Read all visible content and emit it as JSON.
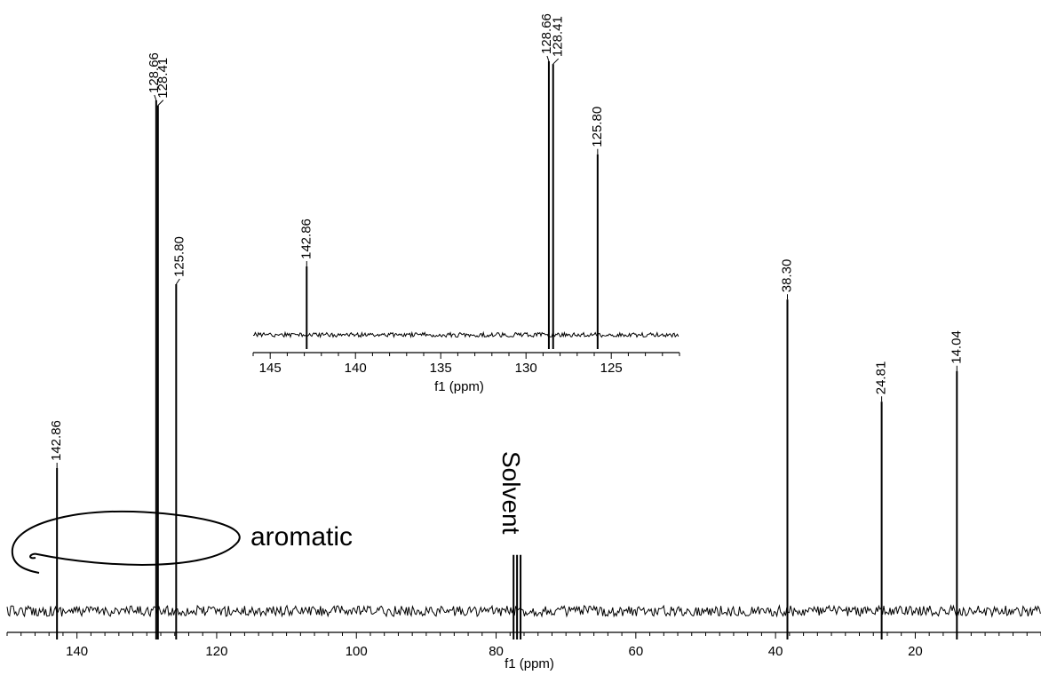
{
  "chart_data": [
    {
      "type": "line",
      "title": "",
      "xlabel": "f1 (ppm)",
      "ylabel": "",
      "xlim": [
        150,
        2
      ],
      "xticks": [
        140,
        120,
        100,
        80,
        60,
        40,
        20
      ],
      "grid": false,
      "series": [
        {
          "peaks": [
            {
              "ppm": 142.86,
              "label": "142.86",
              "height": 0.28
            },
            {
              "ppm": 128.66,
              "label": "128.66",
              "height": 1.0
            },
            {
              "ppm": 128.41,
              "label": "128.41",
              "height": 0.99
            },
            {
              "ppm": 125.8,
              "label": "125.80",
              "height": 0.64
            },
            {
              "ppm": 77.5,
              "label": "",
              "height": 0.11
            },
            {
              "ppm": 77.0,
              "label": "",
              "height": 0.11
            },
            {
              "ppm": 76.5,
              "label": "",
              "height": 0.11
            },
            {
              "ppm": 38.3,
              "label": "38.30",
              "height": 0.61
            },
            {
              "ppm": 24.81,
              "label": "24.81",
              "height": 0.41
            },
            {
              "ppm": 14.04,
              "label": "14.04",
              "height": 0.47
            }
          ]
        }
      ],
      "annotations": [
        {
          "text": "aromatic",
          "ppm": 130
        },
        {
          "text": "Solvent",
          "ppm": 77
        }
      ]
    },
    {
      "type": "line",
      "title": "",
      "xlabel": "f1 (ppm)",
      "ylabel": "",
      "xlim": [
        146,
        121
      ],
      "xticks": [
        145,
        140,
        135,
        130,
        125
      ],
      "grid": false,
      "series": [
        {
          "peaks": [
            {
              "ppm": 142.86,
              "label": "142.86",
              "height": 0.25
            },
            {
              "ppm": 128.66,
              "label": "128.66",
              "height": 1.0
            },
            {
              "ppm": 128.41,
              "label": "128.41",
              "height": 0.99
            },
            {
              "ppm": 125.8,
              "label": "125.80",
              "height": 0.66
            }
          ]
        }
      ]
    }
  ],
  "ink": "#000000"
}
